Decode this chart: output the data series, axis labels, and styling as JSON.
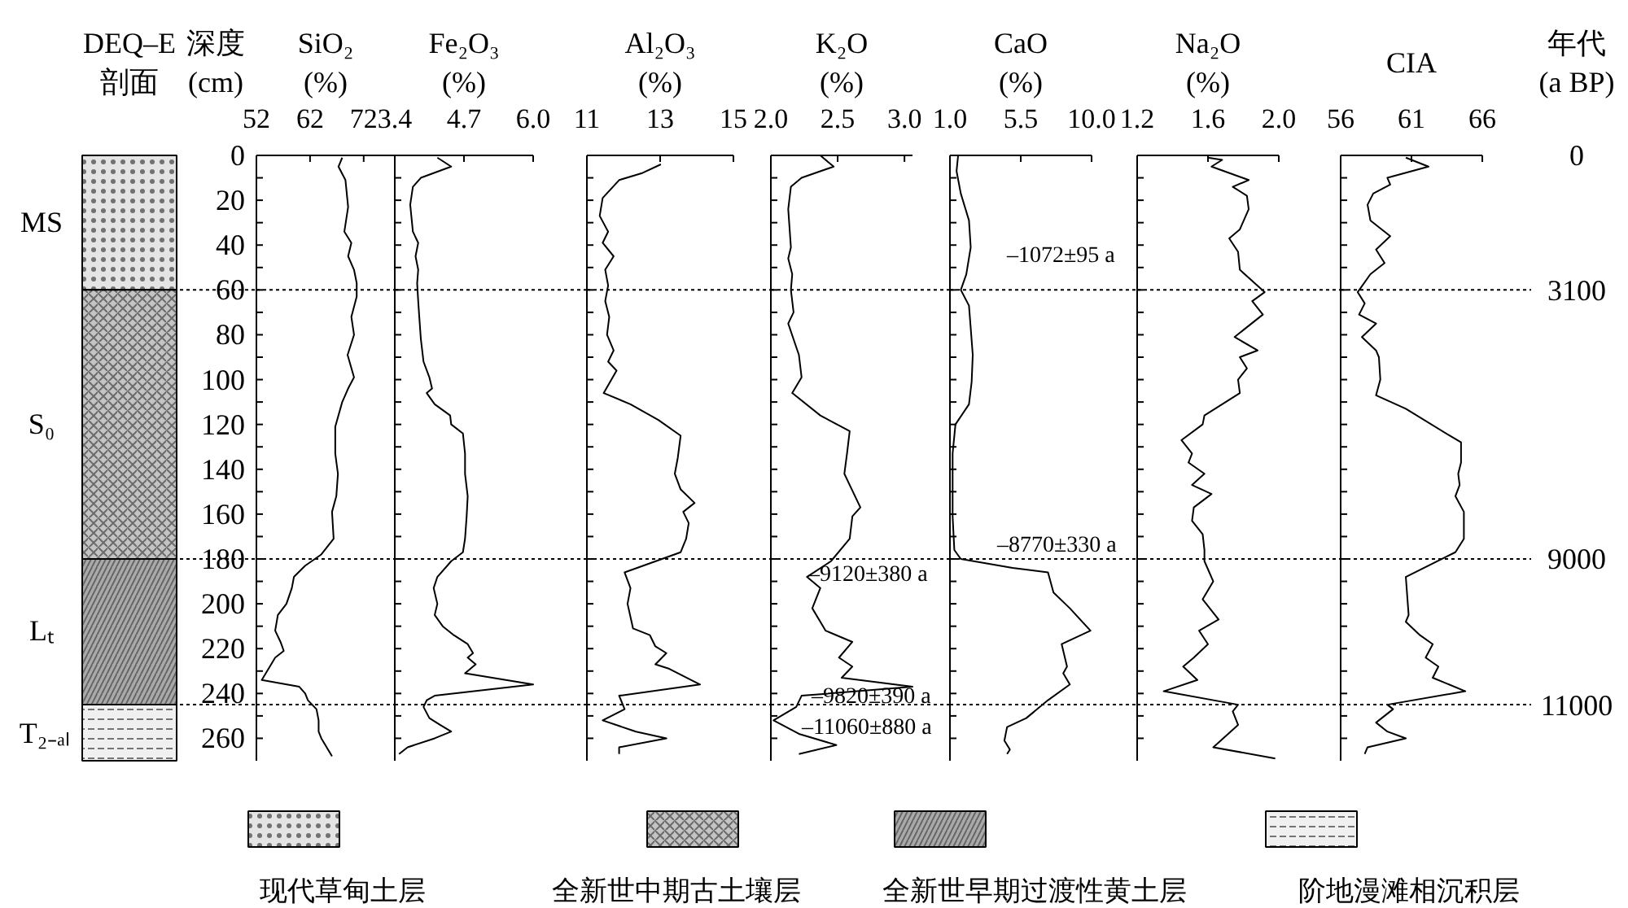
{
  "chart_data": [
    {
      "type": "bar",
      "stacked": true,
      "title": "DEQ–E 剖面",
      "ylabel": "深度 (cm)",
      "categories": [
        null
      ],
      "tick_labels": "y",
      "legend": "bottom",
      "series": [
        {
          "name": "现代草甸土层",
          "color": "#e4e4e4",
          "values": [
            60
          ]
        },
        {
          "name": "全新世中期古土壤层",
          "color": "#c4c4c4",
          "values": [
            120
          ]
        },
        {
          "name": "全新世早期过渡性黄土层",
          "color": "#aaaaaa",
          "values": [
            65
          ]
        },
        {
          "name": "阶地漫滩相沉积层",
          "color": "#f0f0f0",
          "values": [
            25
          ]
        }
      ],
      "ylim": [
        270,
        0
      ],
      "yticks": [
        0,
        20,
        40,
        60,
        80,
        100,
        120,
        140,
        160,
        180,
        200,
        220,
        240,
        260
      ],
      "annotations": [
        "MS",
        "S₀",
        "Lₜ",
        "T₂₋ₐₗ"
      ],
      "ref_lines": [
        {
          "axis": "y",
          "value": 60,
          "line_style": "dotted",
          "color": "#000000"
        },
        {
          "axis": "y",
          "value": 180,
          "line_style": "dotted",
          "color": "#000000"
        },
        {
          "axis": "y",
          "value": 245,
          "line_style": "dotted",
          "color": "#000000"
        }
      ]
    },
    {
      "type": "line",
      "xlabel": "SiO₂ (%)",
      "tick_labels": "x",
      "xlim": [
        52,
        77.8
      ],
      "xticks": [
        52,
        62,
        72
      ],
      "ylim": [
        270,
        0
      ],
      "yticks": [
        {
          "value": 0,
          "label": null
        },
        {
          "value": 10,
          "label": null
        },
        {
          "value": 20,
          "label": null
        },
        {
          "value": 30,
          "label": null
        },
        {
          "value": 40,
          "label": null
        },
        {
          "value": 50,
          "label": null
        },
        {
          "value": 60,
          "label": null
        },
        {
          "value": 70,
          "label": null
        },
        {
          "value": 80,
          "label": null
        },
        {
          "value": 90,
          "label": null
        },
        {
          "value": 100,
          "label": null
        },
        {
          "value": 110,
          "label": null
        },
        {
          "value": 120,
          "label": null
        },
        {
          "value": 130,
          "label": null
        },
        {
          "value": 140,
          "label": null
        },
        {
          "value": 150,
          "label": null
        },
        {
          "value": 160,
          "label": null
        },
        {
          "value": 170,
          "label": null
        },
        {
          "value": 180,
          "label": null
        },
        {
          "value": 190,
          "label": null
        },
        {
          "value": 200,
          "label": null
        },
        {
          "value": 210,
          "label": null
        },
        {
          "value": 220,
          "label": null
        },
        {
          "value": 230,
          "label": null
        },
        {
          "value": 240,
          "label": null
        },
        {
          "value": 250,
          "label": null
        },
        {
          "value": 260,
          "label": null
        }
      ],
      "series": [
        {
          "color": "#000000",
          "x": [
            68.0,
            67.3,
            68.6,
            69.1,
            68.4,
            69.7,
            69.1,
            70.2,
            70.7,
            70.7,
            69.7,
            70.2,
            69.0,
            70.2,
            69.1,
            68.0,
            66.7,
            66.7,
            67.2,
            66.9,
            66.1,
            66.4,
            64.1,
            61.1,
            59.0,
            58.6,
            57.6,
            56.0,
            55.5,
            56.5,
            57.1,
            55.5,
            54.5,
            53.0,
            60.0,
            61.1,
            61.6,
            63.2,
            63.6,
            63.6,
            64.1,
            66.1
          ],
          "values": [
            1,
            5,
            11,
            23,
            34,
            39,
            45,
            51,
            57,
            63,
            72,
            80,
            89,
            99,
            104,
            110,
            121,
            133,
            142,
            152,
            159,
            171,
            178,
            183,
            188,
            193,
            200,
            205,
            212,
            217,
            221,
            224,
            228,
            234,
            237,
            240,
            243,
            247,
            252,
            257,
            260,
            268
          ]
        }
      ],
      "ref_lines": [
        {
          "axis": "y",
          "value": 60,
          "line_style": "dotted",
          "color": "#000000"
        },
        {
          "axis": "y",
          "value": 180,
          "line_style": "dotted",
          "color": "#000000"
        },
        {
          "axis": "y",
          "value": 245,
          "line_style": "dotted",
          "color": "#000000"
        }
      ]
    },
    {
      "type": "line",
      "xlabel": "Fe₂O₃ (%)",
      "tick_labels": "x",
      "xlim": [
        3.4,
        6.0
      ],
      "xticks": [
        3.4,
        4.7,
        {
          "value": 6.0,
          "label": "6.0"
        }
      ],
      "ylim": [
        270,
        0
      ],
      "yticks": [
        {
          "value": 0,
          "label": null
        },
        {
          "value": 10,
          "label": null
        },
        {
          "value": 20,
          "label": null
        },
        {
          "value": 30,
          "label": null
        },
        {
          "value": 40,
          "label": null
        },
        {
          "value": 50,
          "label": null
        },
        {
          "value": 60,
          "label": null
        },
        {
          "value": 70,
          "label": null
        },
        {
          "value": 80,
          "label": null
        },
        {
          "value": 90,
          "label": null
        },
        {
          "value": 100,
          "label": null
        },
        {
          "value": 110,
          "label": null
        },
        {
          "value": 120,
          "label": null
        },
        {
          "value": 130,
          "label": null
        },
        {
          "value": 140,
          "label": null
        },
        {
          "value": 150,
          "label": null
        },
        {
          "value": 160,
          "label": null
        },
        {
          "value": 170,
          "label": null
        },
        {
          "value": 180,
          "label": null
        },
        {
          "value": 190,
          "label": null
        },
        {
          "value": 200,
          "label": null
        },
        {
          "value": 210,
          "label": null
        },
        {
          "value": 220,
          "label": null
        },
        {
          "value": 230,
          "label": null
        },
        {
          "value": 240,
          "label": null
        },
        {
          "value": 250,
          "label": null
        },
        {
          "value": 260,
          "label": null
        }
      ],
      "series": [
        {
          "color": "#000000",
          "x": [
            4.2,
            4.46,
            3.89,
            3.74,
            3.69,
            3.74,
            3.84,
            3.79,
            3.84,
            3.82,
            3.84,
            3.86,
            3.89,
            3.94,
            4.05,
            4.1,
            4.0,
            4.15,
            4.44,
            4.46,
            4.68,
            4.72,
            4.72,
            4.77,
            4.75,
            4.72,
            4.68,
            4.46,
            4.2,
            4.13,
            4.2,
            4.15,
            4.3,
            4.51,
            4.77,
            4.87,
            4.77,
            4.92,
            4.72,
            6.0,
            4.15,
            4.0,
            3.94,
            4.05,
            4.25,
            4.46,
            4.15,
            3.64,
            3.48
          ],
          "values": [
            1,
            5,
            10,
            14,
            22,
            34,
            39,
            45,
            51,
            57,
            65,
            72,
            82,
            92,
            99,
            104,
            106,
            111,
            116,
            120,
            124,
            133,
            142,
            152,
            161,
            171,
            177,
            181,
            188,
            193,
            200,
            205,
            210,
            214,
            218,
            222,
            224,
            227,
            231,
            236,
            241,
            243,
            246,
            251,
            254,
            257,
            260,
            264,
            267
          ]
        }
      ],
      "ref_lines": [
        {
          "axis": "y",
          "value": 60,
          "line_style": "dotted",
          "color": "#000000"
        },
        {
          "axis": "y",
          "value": 180,
          "line_style": "dotted",
          "color": "#000000"
        },
        {
          "axis": "y",
          "value": 245,
          "line_style": "dotted",
          "color": "#000000"
        }
      ]
    },
    {
      "type": "line",
      "xlabel": "Al₂O₃ (%)",
      "tick_labels": "x",
      "xlim": [
        11,
        15
      ],
      "xticks": [
        11,
        13,
        15
      ],
      "ylim": [
        270,
        0
      ],
      "yticks": [
        {
          "value": 0,
          "label": null
        },
        {
          "value": 10,
          "label": null
        },
        {
          "value": 20,
          "label": null
        },
        {
          "value": 30,
          "label": null
        },
        {
          "value": 40,
          "label": null
        },
        {
          "value": 50,
          "label": null
        },
        {
          "value": 60,
          "label": null
        },
        {
          "value": 70,
          "label": null
        },
        {
          "value": 80,
          "label": null
        },
        {
          "value": 90,
          "label": null
        },
        {
          "value": 100,
          "label": null
        },
        {
          "value": 110,
          "label": null
        },
        {
          "value": 120,
          "label": null
        },
        {
          "value": 130,
          "label": null
        },
        {
          "value": 140,
          "label": null
        },
        {
          "value": 150,
          "label": null
        },
        {
          "value": 160,
          "label": null
        },
        {
          "value": 170,
          "label": null
        },
        {
          "value": 180,
          "label": null
        },
        {
          "value": 190,
          "label": null
        },
        {
          "value": 200,
          "label": null
        },
        {
          "value": 210,
          "label": null
        },
        {
          "value": 220,
          "label": null
        },
        {
          "value": 230,
          "label": null
        },
        {
          "value": 240,
          "label": null
        },
        {
          "value": 250,
          "label": null
        },
        {
          "value": 260,
          "label": null
        }
      ],
      "series": [
        {
          "color": "#000000",
          "x": [
            13.02,
            12.49,
            11.88,
            11.43,
            11.35,
            11.58,
            11.43,
            11.73,
            11.5,
            11.58,
            11.5,
            11.61,
            11.55,
            11.73,
            11.58,
            11.81,
            11.46,
            12.19,
            12.95,
            13.56,
            13.48,
            13.4,
            13.56,
            13.94,
            13.63,
            13.78,
            13.71,
            13.56,
            12.03,
            12.19,
            12.11,
            12.26,
            12.72,
            12.87,
            13.17,
            12.87,
            13.25,
            14.09,
            11.88,
            12.03,
            11.43,
            12.34,
            13.17,
            11.88,
            11.88
          ],
          "values": [
            4,
            8,
            11,
            19,
            27,
            34,
            39,
            45,
            51,
            58,
            65,
            72,
            80,
            87,
            92,
            96,
            106,
            111,
            118,
            125,
            135,
            142,
            149,
            155,
            159,
            164,
            171,
            177,
            186,
            193,
            200,
            211,
            214,
            219,
            222,
            227,
            229,
            236,
            241,
            247,
            252,
            257,
            260,
            264,
            267
          ]
        }
      ],
      "ref_lines": [
        {
          "axis": "y",
          "value": 60,
          "line_style": "dotted",
          "color": "#000000"
        },
        {
          "axis": "y",
          "value": 180,
          "line_style": "dotted",
          "color": "#000000"
        },
        {
          "axis": "y",
          "value": 245,
          "line_style": "dotted",
          "color": "#000000"
        }
      ]
    },
    {
      "type": "line",
      "xlabel": "K₂O (%)",
      "tick_labels": "x",
      "xlim": [
        2.0,
        3.06
      ],
      "xticks": [
        {
          "value": 2.0,
          "label": "2.0"
        },
        2.5,
        {
          "value": 3.0,
          "label": "3.0"
        }
      ],
      "ylim": [
        270,
        0
      ],
      "yticks": [
        {
          "value": 0,
          "label": null
        },
        {
          "value": 10,
          "label": null
        },
        {
          "value": 20,
          "label": null
        },
        {
          "value": 30,
          "label": null
        },
        {
          "value": 40,
          "label": null
        },
        {
          "value": 50,
          "label": null
        },
        {
          "value": 60,
          "label": null
        },
        {
          "value": 70,
          "label": null
        },
        {
          "value": 80,
          "label": null
        },
        {
          "value": 90,
          "label": null
        },
        {
          "value": 100,
          "label": null
        },
        {
          "value": 110,
          "label": null
        },
        {
          "value": 120,
          "label": null
        },
        {
          "value": 130,
          "label": null
        },
        {
          "value": 140,
          "label": null
        },
        {
          "value": 150,
          "label": null
        },
        {
          "value": 160,
          "label": null
        },
        {
          "value": 170,
          "label": null
        },
        {
          "value": 180,
          "label": null
        },
        {
          "value": 190,
          "label": null
        },
        {
          "value": 200,
          "label": null
        },
        {
          "value": 210,
          "label": null
        },
        {
          "value": 220,
          "label": null
        },
        {
          "value": 230,
          "label": null
        },
        {
          "value": 240,
          "label": null
        },
        {
          "value": 250,
          "label": null
        },
        {
          "value": 260,
          "label": null
        }
      ],
      "series": [
        {
          "color": "#000000",
          "x": [
            2.37,
            2.47,
            2.23,
            2.15,
            2.13,
            2.15,
            2.13,
            2.16,
            2.15,
            2.17,
            2.13,
            2.17,
            2.21,
            2.23,
            2.16,
            2.37,
            2.59,
            2.57,
            2.55,
            2.59,
            2.67,
            2.61,
            2.59,
            2.45,
            2.27,
            2.37,
            2.31,
            2.41,
            2.61,
            2.51,
            2.61,
            2.53,
            3.06,
            2.23,
            2.19,
            2.02,
            2.21,
            2.49,
            2.21
          ],
          "values": [
            0,
            5,
            10,
            14,
            24,
            41,
            46,
            53,
            60,
            70,
            75,
            82,
            89,
            99,
            106,
            116,
            123,
            133,
            142,
            147,
            157,
            161,
            171,
            181,
            188,
            193,
            202,
            212,
            217,
            224,
            228,
            233,
            237,
            241,
            246,
            252,
            258,
            263,
            267
          ]
        }
      ],
      "annotations": [
        "–9120±380 a",
        "–9820±390 a",
        "–11060±880 a"
      ],
      "ref_lines": [
        {
          "axis": "y",
          "value": 60,
          "line_style": "dotted",
          "color": "#000000"
        },
        {
          "axis": "y",
          "value": 180,
          "line_style": "dotted",
          "color": "#000000"
        },
        {
          "axis": "y",
          "value": 245,
          "line_style": "dotted",
          "color": "#000000"
        }
      ]
    },
    {
      "type": "line",
      "xlabel": "CaO (%)",
      "tick_labels": "x",
      "xlim": [
        1.0,
        10.0
      ],
      "xticks": [
        {
          "value": 1.0,
          "label": "1.0"
        },
        5.5,
        {
          "value": 10.0,
          "label": "10.0"
        }
      ],
      "ylim": [
        270,
        0
      ],
      "yticks": [
        {
          "value": 0,
          "label": null
        },
        {
          "value": 10,
          "label": null
        },
        {
          "value": 20,
          "label": null
        },
        {
          "value": 30,
          "label": null
        },
        {
          "value": 40,
          "label": null
        },
        {
          "value": 50,
          "label": null
        },
        {
          "value": 60,
          "label": null
        },
        {
          "value": 70,
          "label": null
        },
        {
          "value": 80,
          "label": null
        },
        {
          "value": 90,
          "label": null
        },
        {
          "value": 100,
          "label": null
        },
        {
          "value": 110,
          "label": null
        },
        {
          "value": 120,
          "label": null
        },
        {
          "value": 130,
          "label": null
        },
        {
          "value": 140,
          "label": null
        },
        {
          "value": 150,
          "label": null
        },
        {
          "value": 160,
          "label": null
        },
        {
          "value": 170,
          "label": null
        },
        {
          "value": 180,
          "label": null
        },
        {
          "value": 190,
          "label": null
        },
        {
          "value": 200,
          "label": null
        },
        {
          "value": 210,
          "label": null
        },
        {
          "value": 220,
          "label": null
        },
        {
          "value": 230,
          "label": null
        },
        {
          "value": 240,
          "label": null
        },
        {
          "value": 250,
          "label": null
        },
        {
          "value": 260,
          "label": null
        }
      ],
      "series": [
        {
          "color": "#000000",
          "x": [
            1.52,
            1.42,
            1.69,
            2.21,
            2.32,
            2.04,
            1.69,
            2.21,
            2.32,
            2.45,
            2.38,
            2.21,
            1.35,
            1.17,
            1.17,
            1.28,
            1.69,
            4.98,
            7.23,
            7.58,
            8.62,
            9.93,
            8.1,
            8.44,
            8.2,
            8.62,
            7.23,
            5.85,
            4.63,
            4.46,
            4.81,
            4.63
          ],
          "values": [
            0,
            7,
            17,
            29,
            41,
            53,
            60,
            67,
            77,
            89,
            101,
            111,
            120,
            133,
            161,
            176,
            180,
            184,
            186,
            195,
            202,
            212,
            218,
            228,
            231,
            236,
            243,
            251,
            255,
            261,
            265,
            267
          ]
        }
      ],
      "annotations": [
        "–1072±95 a",
        "–8770±330 a"
      ],
      "ref_lines": [
        {
          "axis": "y",
          "value": 60,
          "line_style": "dotted",
          "color": "#000000"
        },
        {
          "axis": "y",
          "value": 180,
          "line_style": "dotted",
          "color": "#000000"
        },
        {
          "axis": "y",
          "value": 245,
          "line_style": "dotted",
          "color": "#000000"
        }
      ]
    },
    {
      "type": "line",
      "xlabel": "Na₂O (%)",
      "tick_labels": "x",
      "xlim": [
        1.2,
        2.0
      ],
      "xticks": [
        1.2,
        1.6,
        {
          "value": 2.0,
          "label": "2.0"
        }
      ],
      "ylim": [
        270,
        0
      ],
      "yticks": [
        {
          "value": 0,
          "label": null
        },
        {
          "value": 10,
          "label": null
        },
        {
          "value": 20,
          "label": null
        },
        {
          "value": 30,
          "label": null
        },
        {
          "value": 40,
          "label": null
        },
        {
          "value": 50,
          "label": null
        },
        {
          "value": 60,
          "label": null
        },
        {
          "value": 70,
          "label": null
        },
        {
          "value": 80,
          "label": null
        },
        {
          "value": 90,
          "label": null
        },
        {
          "value": 100,
          "label": null
        },
        {
          "value": 110,
          "label": null
        },
        {
          "value": 120,
          "label": null
        },
        {
          "value": 130,
          "label": null
        },
        {
          "value": 140,
          "label": null
        },
        {
          "value": 150,
          "label": null
        },
        {
          "value": 160,
          "label": null
        },
        {
          "value": 170,
          "label": null
        },
        {
          "value": 180,
          "label": null
        },
        {
          "value": 190,
          "label": null
        },
        {
          "value": 200,
          "label": null
        },
        {
          "value": 210,
          "label": null
        },
        {
          "value": 220,
          "label": null
        },
        {
          "value": 230,
          "label": null
        },
        {
          "value": 240,
          "label": null
        },
        {
          "value": 250,
          "label": null
        },
        {
          "value": 260,
          "label": null
        }
      ],
      "series": [
        {
          "color": "#000000",
          "x": [
            1.6,
            1.68,
            1.62,
            1.83,
            1.74,
            1.82,
            1.83,
            1.78,
            1.72,
            1.77,
            1.78,
            1.92,
            1.85,
            1.91,
            1.75,
            1.88,
            1.78,
            1.82,
            1.77,
            1.78,
            1.58,
            1.57,
            1.45,
            1.51,
            1.49,
            1.58,
            1.51,
            1.62,
            1.52,
            1.51,
            1.57,
            1.58,
            1.58,
            1.63,
            1.57,
            1.66,
            1.55,
            1.6,
            1.52,
            1.46,
            1.54,
            1.35,
            1.77,
            1.74,
            1.77,
            1.63,
            1.98
          ],
          "values": [
            1,
            2,
            5,
            11,
            14,
            18,
            24,
            33,
            37,
            43,
            51,
            61,
            65,
            71,
            81,
            87,
            90,
            95,
            100,
            106,
            116,
            120,
            127,
            133,
            137,
            142,
            147,
            151,
            157,
            163,
            169,
            176,
            181,
            190,
            198,
            207,
            212,
            218,
            224,
            228,
            234,
            239,
            245,
            248,
            254,
            264,
            269
          ]
        }
      ],
      "ref_lines": [
        {
          "axis": "y",
          "value": 60,
          "line_style": "dotted",
          "color": "#000000"
        },
        {
          "axis": "y",
          "value": 180,
          "line_style": "dotted",
          "color": "#000000"
        },
        {
          "axis": "y",
          "value": 245,
          "line_style": "dotted",
          "color": "#000000"
        }
      ]
    },
    {
      "type": "line",
      "xlabel": "CIA",
      "annotations": [
        "年代 (a BP)",
        "0",
        "3100",
        "9000",
        "11000"
      ],
      "tick_labels": "x",
      "xlim": [
        56,
        66
      ],
      "xticks": [
        56,
        61,
        66
      ],
      "ylim": [
        270,
        0
      ],
      "yticks": [
        {
          "value": 0,
          "label": null
        },
        {
          "value": 10,
          "label": null
        },
        {
          "value": 20,
          "label": null
        },
        {
          "value": 30,
          "label": null
        },
        {
          "value": 40,
          "label": null
        },
        {
          "value": 50,
          "label": null
        },
        {
          "value": 60,
          "label": null
        },
        {
          "value": 70,
          "label": null
        },
        {
          "value": 80,
          "label": null
        },
        {
          "value": 90,
          "label": null
        },
        {
          "value": 100,
          "label": null
        },
        {
          "value": 110,
          "label": null
        },
        {
          "value": 120,
          "label": null
        },
        {
          "value": 130,
          "label": null
        },
        {
          "value": 140,
          "label": null
        },
        {
          "value": 150,
          "label": null
        },
        {
          "value": 160,
          "label": null
        },
        {
          "value": 170,
          "label": null
        },
        {
          "value": 180,
          "label": null
        },
        {
          "value": 190,
          "label": null
        },
        {
          "value": 200,
          "label": null
        },
        {
          "value": 210,
          "label": null
        },
        {
          "value": 220,
          "label": null
        },
        {
          "value": 230,
          "label": null
        },
        {
          "value": 240,
          "label": null
        },
        {
          "value": 250,
          "label": null
        },
        {
          "value": 260,
          "label": null
        }
      ],
      "series": [
        {
          "color": "#000000",
          "x": [
            60.6,
            62.2,
            59.3,
            59.5,
            58.3,
            57.9,
            58.1,
            59.5,
            58.5,
            59.1,
            58.1,
            57.2,
            57.7,
            57.3,
            58.5,
            57.5,
            58.5,
            58.7,
            58.8,
            58.5,
            60.6,
            63.7,
            64.5,
            64.5,
            64.3,
            64.4,
            64.1,
            64.7,
            64.7,
            64.1,
            60.6,
            60.8,
            60.6,
            61.6,
            62.5,
            62.0,
            62.9,
            62.5,
            64.8,
            59.3,
            59.7,
            58.5,
            59.3,
            60.6,
            57.9,
            57.7
          ],
          "values": [
            1,
            5,
            10,
            13,
            17,
            22,
            29,
            36,
            42,
            48,
            53,
            61,
            66,
            71,
            75,
            81,
            87,
            90,
            100,
            107,
            113,
            125,
            128,
            137,
            142,
            147,
            152,
            159,
            171,
            177,
            188,
            205,
            208,
            214,
            218,
            224,
            228,
            233,
            239,
            245,
            247,
            253,
            257,
            260,
            264,
            267
          ]
        }
      ],
      "ref_lines": [
        {
          "axis": "y",
          "value": 60,
          "line_style": "dotted",
          "color": "#000000"
        },
        {
          "axis": "y",
          "value": 180,
          "line_style": "dotted",
          "color": "#000000"
        },
        {
          "axis": "y",
          "value": 245,
          "line_style": "dotted",
          "color": "#000000"
        }
      ]
    }
  ]
}
